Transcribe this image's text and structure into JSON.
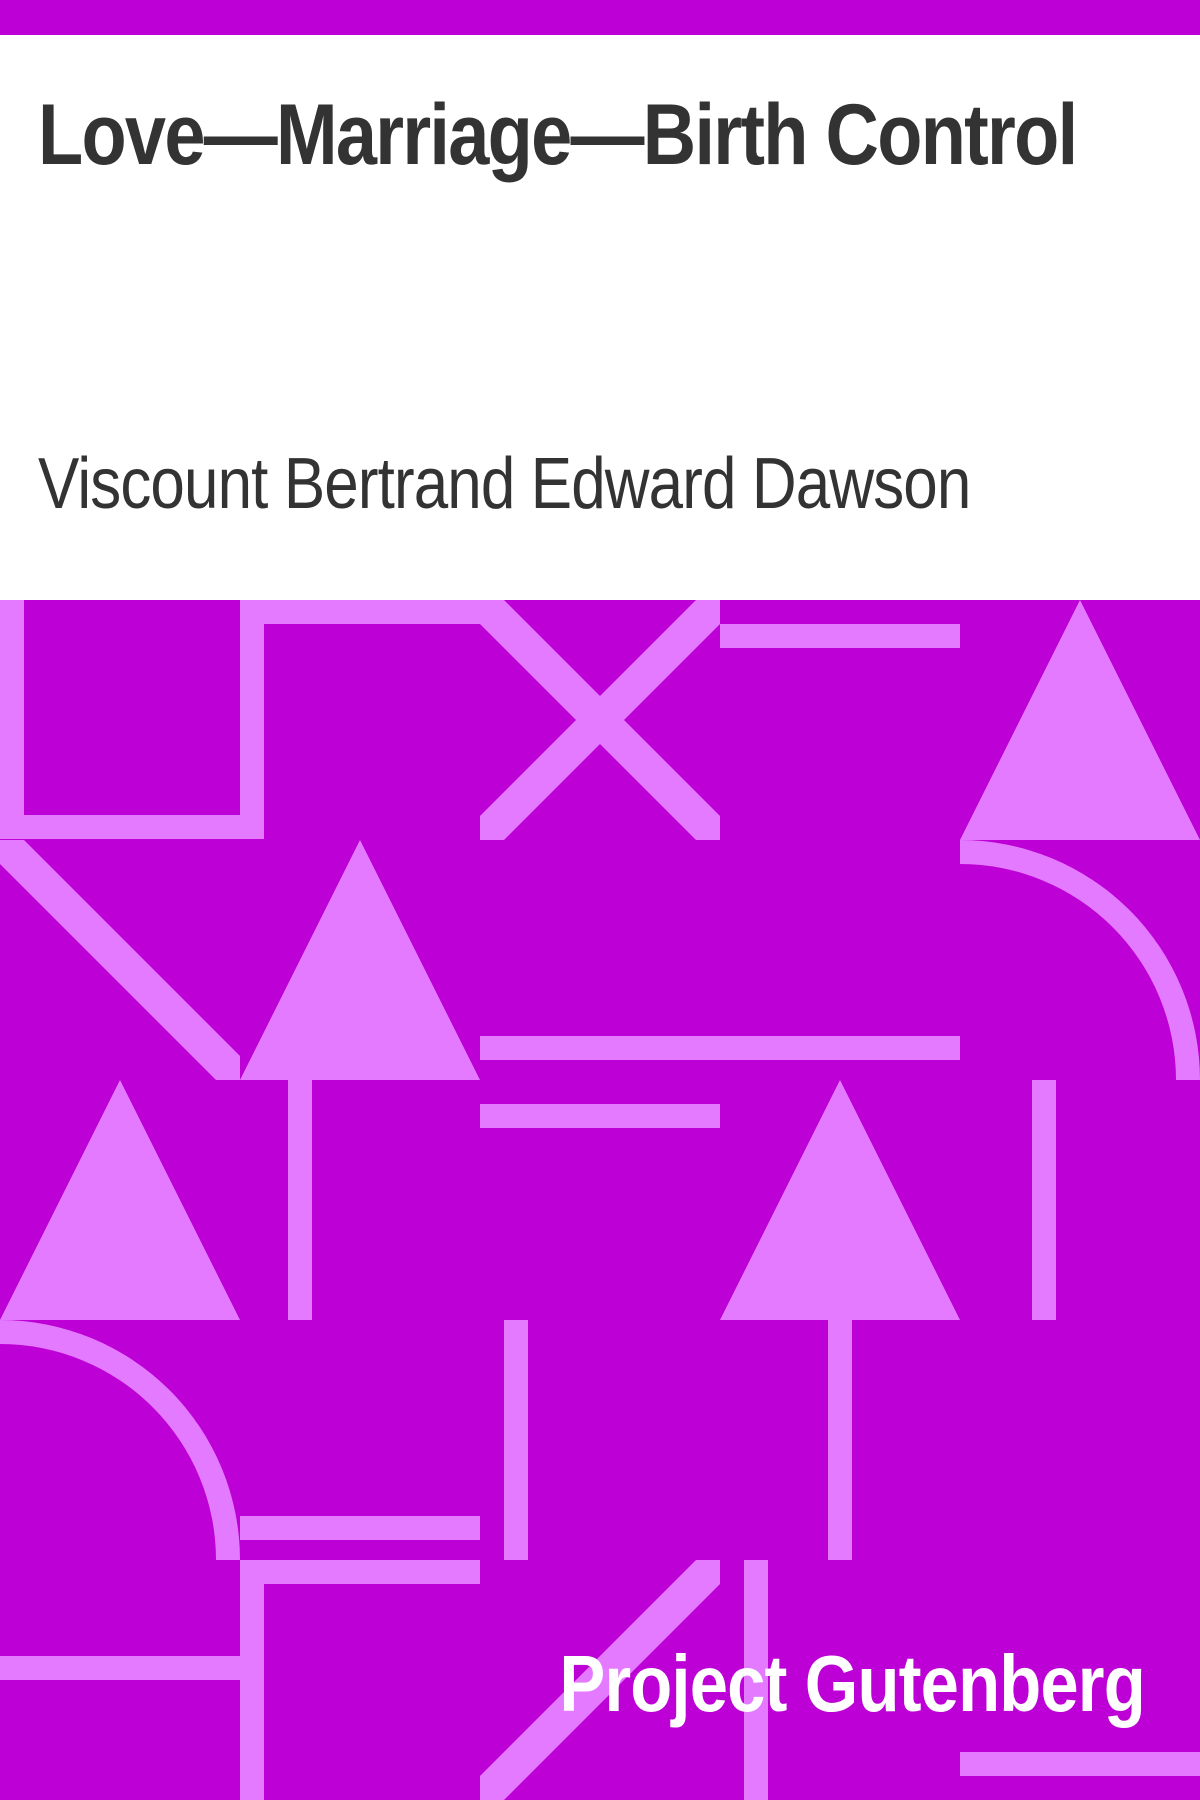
{
  "cover": {
    "title": "Love—Marriage—Birth Control",
    "author": "Viscount Bertrand Edward Dawson",
    "publisher": "Project Gutenberg"
  },
  "colors": {
    "background": "#bd00d6",
    "pattern": "#e47aff",
    "text": "#333333",
    "publisher_text": "#ffffff"
  }
}
